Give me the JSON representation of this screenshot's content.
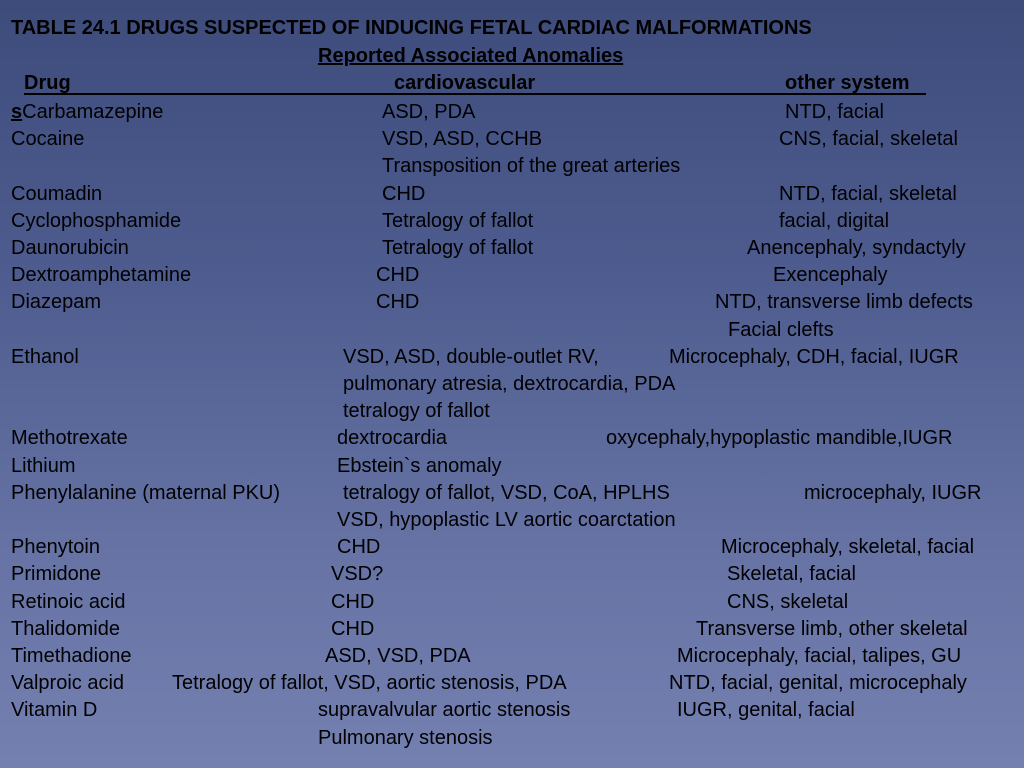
{
  "title": "TABLE 24.1 DRUGS SUSPECTED OF INDUCING FETAL CARDIAC MALFORMATIONS",
  "subtitle": "Reported Associated Anomalies",
  "headers": {
    "drug": "Drug",
    "cardiovascular": "cardiovascular",
    "other": "other system"
  },
  "rows": [
    {
      "prefix": "s",
      "drug": "Carbamazepine",
      "cardio": "ASD, PDA",
      "other": "NTD, facial"
    },
    {
      "drug": "Cocaine",
      "cardio": "VSD, ASD, CCHB",
      "other": "CNS, facial, skeletal"
    },
    {
      "cardio": "Transposition of the great arteries"
    },
    {
      "drug": "Coumadin",
      "cardio": "CHD",
      "other": "NTD, facial, skeletal"
    },
    {
      "drug": "Cyclophosphamide",
      "cardio": "Tetralogy of fallot",
      "other": "facial, digital"
    },
    {
      "drug": "Daunorubicin",
      "cardio": "Tetralogy of fallot",
      "other": "Anencephaly, syndactyly"
    },
    {
      "drug": "Dextroamphetamine",
      "cardio": "CHD",
      "other": "Exencephaly"
    },
    {
      "drug": "Diazepam",
      "cardio": "CHD",
      "other": "NTD, transverse limb defects"
    },
    {
      "other": "Facial clefts"
    },
    {
      "drug": "Ethanol",
      "cardio": "VSD, ASD, double-outlet RV,",
      "other": "Microcephaly, CDH, facial, IUGR"
    },
    {
      "cardio": "pulmonary atresia, dextrocardia, PDA"
    },
    {
      "cardio": "tetralogy of fallot"
    },
    {
      "drug": "Methotrexate",
      "cardio": "dextrocardia",
      "other": "oxycephaly,hypoplastic mandible,IUGR"
    },
    {
      "drug": "Lithium",
      "cardio": "Ebstein`s anomaly"
    },
    {
      "drug": "Phenylalanine (maternal PKU)",
      "cardio": "tetralogy of fallot, VSD, CoA, HPLHS",
      "other": "microcephaly, IUGR"
    },
    {
      "cardio": "VSD, hypoplastic LV aortic coarctation"
    },
    {
      "drug": "Phenytoin",
      "cardio": "CHD",
      "other": "Microcephaly, skeletal, facial"
    },
    {
      "drug": "Primidone",
      "cardio": "VSD?",
      "other": "Skeletal, facial"
    },
    {
      "drug": "Retinoic acid",
      "cardio": "CHD",
      "other": "CNS, skeletal"
    },
    {
      "drug": "Thalidomide",
      "cardio": "CHD",
      "other": "Transverse limb, other skeletal"
    },
    {
      "drug": "Timethadione",
      "cardio": "ASD, VSD, PDA",
      "other": "Microcephaly, facial, talipes, GU"
    },
    {
      "drug": "Valproic acid",
      "cardio": "Tetralogy of fallot, VSD, aortic stenosis, PDA",
      "other": "NTD, facial, genital, microcephaly"
    },
    {
      "drug": "Vitamin D",
      "cardio": "supravalvular aortic stenosis",
      "other": "IUGR, genital, facial"
    },
    {
      "cardio": "Pulmonary stenosis"
    }
  ]
}
